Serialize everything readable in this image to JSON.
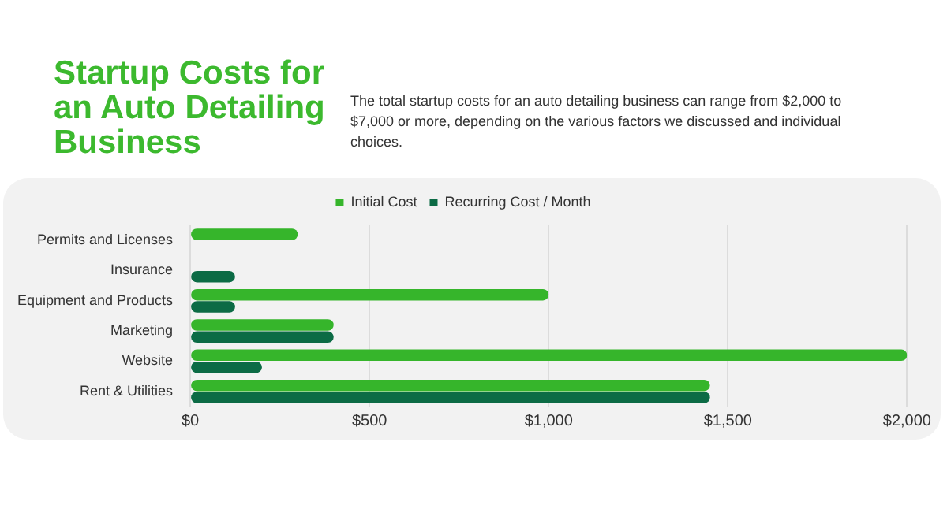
{
  "chart_data": {
    "type": "bar",
    "orientation": "horizontal",
    "title": "Startup Costs for an Auto Detailing Business",
    "subtitle": "The total startup costs for an auto detailing business can range from $2,000 to $7,000 or more, depending on the various factors we discussed and individual choices.",
    "categories": [
      "Permits and Licenses",
      "Insurance",
      "Equipment and Products",
      "Marketing",
      "Website",
      "Rent & Utilities"
    ],
    "series": [
      {
        "name": "Initial Cost",
        "color": "#36b52b",
        "values": [
          300,
          null,
          1000,
          400,
          2000,
          1450
        ]
      },
      {
        "name": "Recurring Cost / Month",
        "color": "#0c6b45",
        "values": [
          null,
          125,
          125,
          400,
          200,
          1450
        ]
      }
    ],
    "xlim": [
      0,
      2000
    ],
    "xticks": [
      {
        "value": 0,
        "label": "$0"
      },
      {
        "value": 500,
        "label": "$500"
      },
      {
        "value": 1000,
        "label": "$1,000"
      },
      {
        "value": 1500,
        "label": "$1,500"
      },
      {
        "value": 2000,
        "label": "$2,000"
      }
    ],
    "grid": "x",
    "legend": "top"
  }
}
